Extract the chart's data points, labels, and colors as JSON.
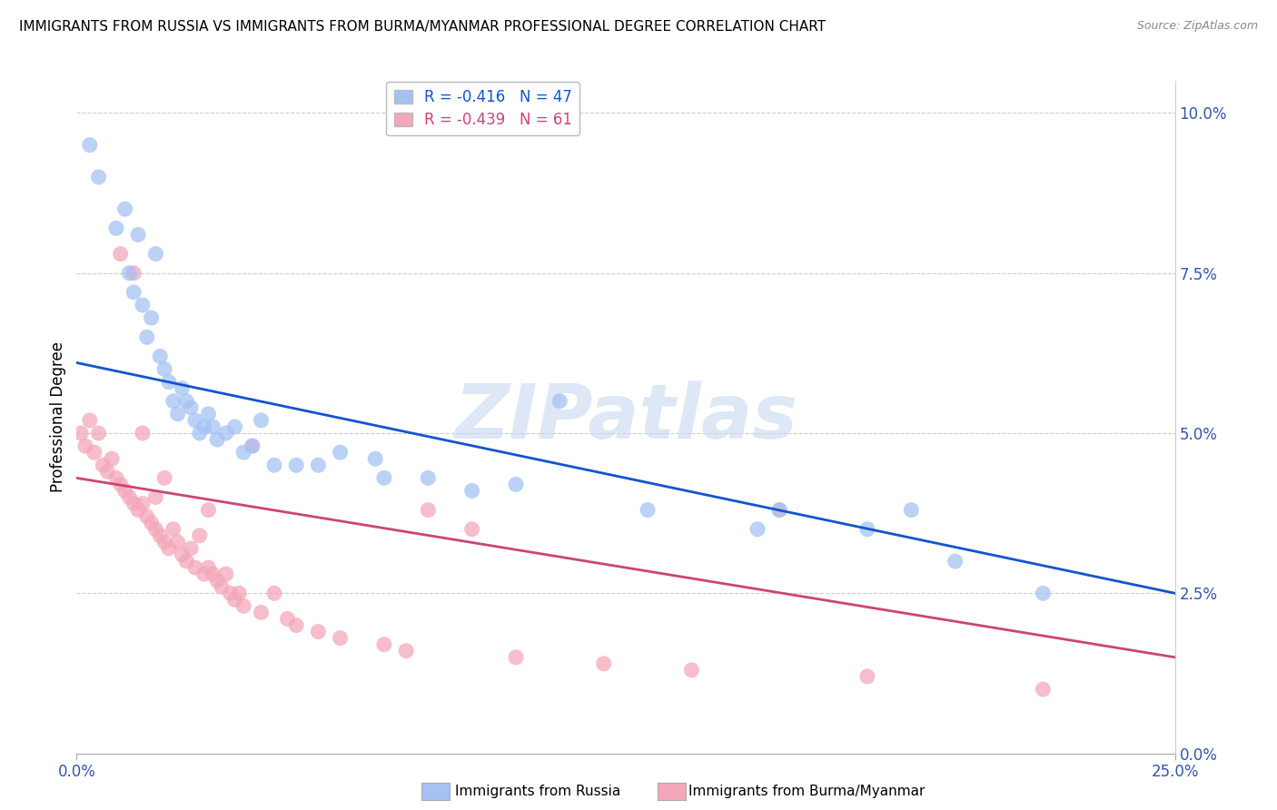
{
  "title": "IMMIGRANTS FROM RUSSIA VS IMMIGRANTS FROM BURMA/MYANMAR PROFESSIONAL DEGREE CORRELATION CHART",
  "source": "Source: ZipAtlas.com",
  "ylabel": "Professional Degree",
  "xlim": [
    0.0,
    25.0
  ],
  "ylim": [
    0.0,
    10.5
  ],
  "russia_R": -0.416,
  "russia_N": 47,
  "burma_R": -0.439,
  "burma_N": 61,
  "russia_color": "#a4c2f4",
  "burma_color": "#f4a7b9",
  "russia_line_color": "#1155cc",
  "burma_line_color": "#cc4477",
  "watermark_color": "#c8d8f0",
  "russia_x": [
    0.3,
    0.5,
    0.9,
    1.1,
    1.2,
    1.3,
    1.4,
    1.5,
    1.6,
    1.7,
    1.8,
    1.9,
    2.0,
    2.1,
    2.2,
    2.3,
    2.4,
    2.5,
    2.6,
    2.7,
    2.8,
    2.9,
    3.0,
    3.1,
    3.2,
    3.4,
    3.6,
    3.8,
    4.0,
    4.2,
    4.5,
    5.0,
    5.5,
    6.0,
    6.8,
    7.0,
    8.0,
    9.0,
    10.0,
    11.0,
    13.0,
    15.5,
    16.0,
    18.0,
    19.0,
    20.0,
    22.0
  ],
  "russia_y": [
    9.5,
    9.0,
    8.2,
    8.5,
    7.5,
    7.2,
    8.1,
    7.0,
    6.5,
    6.8,
    7.8,
    6.2,
    6.0,
    5.8,
    5.5,
    5.3,
    5.7,
    5.5,
    5.4,
    5.2,
    5.0,
    5.1,
    5.3,
    5.1,
    4.9,
    5.0,
    5.1,
    4.7,
    4.8,
    5.2,
    4.5,
    4.5,
    4.5,
    4.7,
    4.6,
    4.3,
    4.3,
    4.1,
    4.2,
    5.5,
    3.8,
    3.5,
    3.8,
    3.5,
    3.8,
    3.0,
    2.5
  ],
  "burma_x": [
    0.1,
    0.2,
    0.3,
    0.4,
    0.5,
    0.6,
    0.7,
    0.8,
    0.9,
    1.0,
    1.0,
    1.1,
    1.2,
    1.3,
    1.3,
    1.4,
    1.5,
    1.5,
    1.6,
    1.7,
    1.8,
    1.8,
    1.9,
    2.0,
    2.0,
    2.1,
    2.2,
    2.3,
    2.4,
    2.5,
    2.6,
    2.7,
    2.8,
    2.9,
    3.0,
    3.0,
    3.1,
    3.2,
    3.3,
    3.4,
    3.5,
    3.6,
    3.7,
    3.8,
    4.0,
    4.2,
    4.5,
    4.8,
    5.0,
    5.5,
    6.0,
    7.0,
    7.5,
    8.0,
    9.0,
    10.0,
    12.0,
    14.0,
    16.0,
    18.0,
    22.0
  ],
  "burma_y": [
    5.0,
    4.8,
    5.2,
    4.7,
    5.0,
    4.5,
    4.4,
    4.6,
    4.3,
    4.2,
    7.8,
    4.1,
    4.0,
    3.9,
    7.5,
    3.8,
    3.9,
    5.0,
    3.7,
    3.6,
    3.5,
    4.0,
    3.4,
    3.3,
    4.3,
    3.2,
    3.5,
    3.3,
    3.1,
    3.0,
    3.2,
    2.9,
    3.4,
    2.8,
    2.9,
    3.8,
    2.8,
    2.7,
    2.6,
    2.8,
    2.5,
    2.4,
    2.5,
    2.3,
    4.8,
    2.2,
    2.5,
    2.1,
    2.0,
    1.9,
    1.8,
    1.7,
    1.6,
    3.8,
    3.5,
    1.5,
    1.4,
    1.3,
    3.8,
    1.2,
    1.0
  ],
  "russia_line_x0": 0.0,
  "russia_line_y0": 6.1,
  "russia_line_x1": 25.0,
  "russia_line_y1": 2.5,
  "burma_line_x0": 0.0,
  "burma_line_y0": 4.3,
  "burma_line_x1": 25.0,
  "burma_line_y1": 1.5
}
